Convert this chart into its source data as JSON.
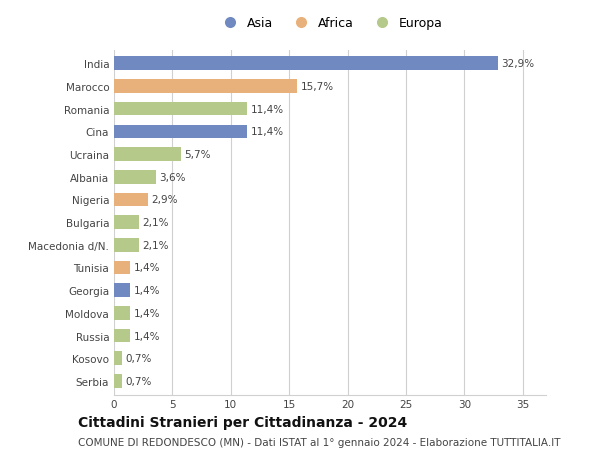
{
  "categories": [
    "India",
    "Marocco",
    "Romania",
    "Cina",
    "Ucraina",
    "Albania",
    "Nigeria",
    "Bulgaria",
    "Macedonia d/N.",
    "Tunisia",
    "Georgia",
    "Moldova",
    "Russia",
    "Kosovo",
    "Serbia"
  ],
  "values": [
    32.9,
    15.7,
    11.4,
    11.4,
    5.7,
    3.6,
    2.9,
    2.1,
    2.1,
    1.4,
    1.4,
    1.4,
    1.4,
    0.7,
    0.7
  ],
  "labels": [
    "32,9%",
    "15,7%",
    "11,4%",
    "11,4%",
    "5,7%",
    "3,6%",
    "2,9%",
    "2,1%",
    "2,1%",
    "1,4%",
    "1,4%",
    "1,4%",
    "1,4%",
    "0,7%",
    "0,7%"
  ],
  "continents": [
    "Asia",
    "Africa",
    "Europa",
    "Asia",
    "Europa",
    "Europa",
    "Africa",
    "Europa",
    "Europa",
    "Africa",
    "Asia",
    "Europa",
    "Europa",
    "Europa",
    "Europa"
  ],
  "colors": {
    "Asia": "#7089c0",
    "Africa": "#e8b07a",
    "Europa": "#b5c98a"
  },
  "legend_order": [
    "Asia",
    "Africa",
    "Europa"
  ],
  "xlim": [
    0,
    37
  ],
  "xticks": [
    0,
    5,
    10,
    15,
    20,
    25,
    30,
    35
  ],
  "title": "Cittadini Stranieri per Cittadinanza - 2024",
  "subtitle": "COMUNE DI REDONDESCO (MN) - Dati ISTAT al 1° gennaio 2024 - Elaborazione TUTTITALIA.IT",
  "background_color": "#ffffff",
  "grid_color": "#d0d0d0",
  "bar_height": 0.6,
  "label_fontsize": 7.5,
  "tick_fontsize": 7.5,
  "title_fontsize": 10,
  "subtitle_fontsize": 7.5
}
